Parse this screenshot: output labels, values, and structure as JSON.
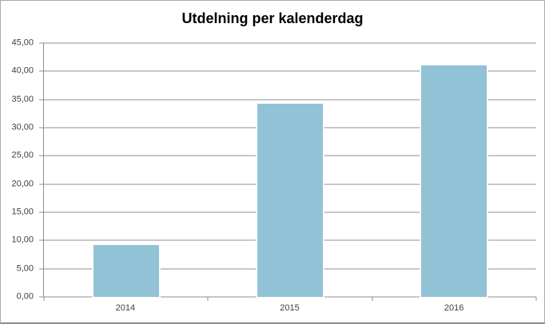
{
  "chart_data": {
    "type": "bar",
    "title": "Utdelning per kalenderdag",
    "categories": [
      "2014",
      "2015",
      "2016"
    ],
    "values": [
      9.2,
      34.2,
      41.1
    ],
    "xlabel": "",
    "ylabel": "",
    "ylim": [
      0,
      45
    ],
    "ytick_step": 5,
    "ytick_labels": [
      "0,00",
      "5,00",
      "10,00",
      "15,00",
      "20,00",
      "25,00",
      "30,00",
      "35,00",
      "40,00",
      "45,00"
    ],
    "decimal_separator": ",",
    "grid": true,
    "legend": false
  },
  "colors": {
    "bar_fill": "#92C2D5",
    "gridline": "#8F8F8F",
    "axis": "#8F8F8F",
    "tick_label": "#404040",
    "title": "#000000",
    "chart_border": "#ABABAB",
    "background": "#FFFFFF"
  }
}
